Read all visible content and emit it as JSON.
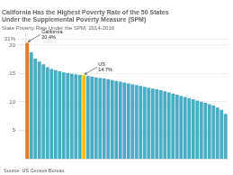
{
  "chart_data": {
    "type": "bar",
    "title": "California Has the Highest Poverty Rate of the 50 States\nUnder the Supplemental Poverty Measure (SPM)",
    "subtitle": "State Poverty Rate Under the SPM, 2014-2016",
    "source": "Source: US Census Bureau",
    "categories": [
      null,
      null,
      null,
      null,
      null,
      null,
      null,
      null,
      null,
      null,
      null,
      null,
      null,
      null,
      null,
      null,
      null,
      null,
      null,
      null,
      null,
      null,
      null,
      null,
      null,
      null,
      null,
      null,
      null,
      null,
      null,
      null,
      null,
      null,
      null,
      null,
      null,
      null,
      null,
      null,
      null,
      null,
      null,
      null,
      null,
      null,
      null,
      null,
      null,
      null
    ],
    "values": [
      20.4,
      18.7,
      17.6,
      17.1,
      16.6,
      16.1,
      15.8,
      15.6,
      15.4,
      15.2,
      15.05,
      14.95,
      14.85,
      14.75,
      14.7,
      14.55,
      14.45,
      14.3,
      14.2,
      14.1,
      14.0,
      13.85,
      13.7,
      13.55,
      13.4,
      13.25,
      13.1,
      12.95,
      12.8,
      12.65,
      12.5,
      12.35,
      12.2,
      12.05,
      11.85,
      11.65,
      11.45,
      11.25,
      11.05,
      10.85,
      10.65,
      10.45,
      10.25,
      10.05,
      9.85,
      9.6,
      9.35,
      9.0,
      8.6,
      7.9
    ],
    "colors": [
      "#e87722",
      "#4bacc6",
      "#4bacc6",
      "#4bacc6",
      "#4bacc6",
      "#4bacc6",
      "#4bacc6",
      "#4bacc6",
      "#4bacc6",
      "#4bacc6",
      "#4bacc6",
      "#4bacc6",
      "#4bacc6",
      "#4bacc6",
      "#ffc000",
      "#4bacc6",
      "#4bacc6",
      "#4bacc6",
      "#4bacc6",
      "#4bacc6",
      "#4bacc6",
      "#4bacc6",
      "#4bacc6",
      "#4bacc6",
      "#4bacc6",
      "#4bacc6",
      "#4bacc6",
      "#4bacc6",
      "#4bacc6",
      "#4bacc6",
      "#4bacc6",
      "#4bacc6",
      "#4bacc6",
      "#4bacc6",
      "#4bacc6",
      "#4bacc6",
      "#4bacc6",
      "#4bacc6",
      "#4bacc6",
      "#4bacc6",
      "#4bacc6",
      "#4bacc6",
      "#4bacc6",
      "#4bacc6",
      "#4bacc6",
      "#4bacc6",
      "#4bacc6",
      "#4bacc6",
      "#4bacc6",
      "#4bacc6"
    ],
    "ylim": [
      0,
      22
    ],
    "yticks": [
      5,
      10,
      15,
      20,
      {
        "value": 21,
        "label": "21%"
      }
    ],
    "grid": true,
    "tick_labels": "y",
    "annotations": [
      {
        "text": "California\n20.4%",
        "x": 0,
        "y": 20.4
      },
      {
        "text": "US\n14.7%",
        "x": 14,
        "y": 14.7
      }
    ]
  }
}
